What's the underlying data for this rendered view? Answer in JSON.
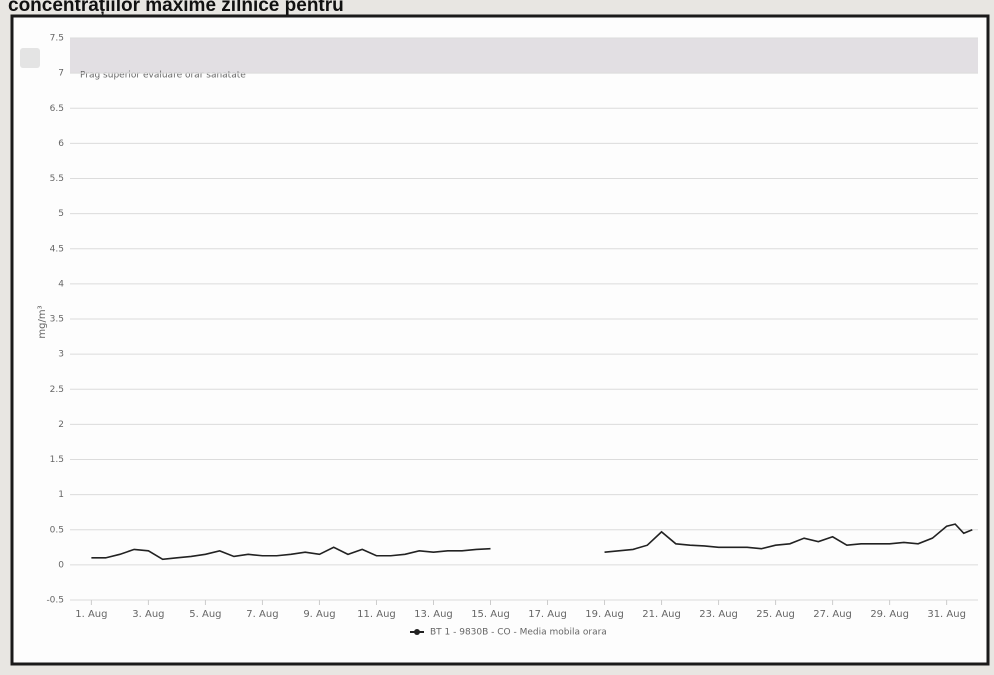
{
  "chart_data": {
    "type": "line",
    "title": "concentrațiilor maxime zilnice pentru",
    "ylabel": "mg/m³",
    "annotation": "Prag superior evaluare orar sanatate",
    "x": [
      1,
      1.5,
      2,
      2.5,
      3,
      3.5,
      4,
      4.5,
      5,
      5.5,
      6,
      6.5,
      7,
      7.5,
      8,
      8.5,
      9,
      9.5,
      10,
      10.5,
      11,
      11.5,
      12,
      12.5,
      13,
      13.5,
      14,
      14.5,
      15,
      17,
      19,
      19.5,
      20,
      20.5,
      21,
      21.5,
      22,
      22.5,
      23,
      23.5,
      24,
      24.5,
      25,
      25.5,
      26,
      26.5,
      27,
      27.5,
      28,
      28.5,
      29,
      29.5,
      30,
      30.5,
      31,
      31.3,
      31.6,
      31.9
    ],
    "series": [
      {
        "name": "BT 1 - 9830B - CO - Media mobila orara",
        "color": "#222222",
        "values": [
          0.1,
          0.1,
          0.15,
          0.22,
          0.2,
          0.08,
          0.1,
          0.12,
          0.15,
          0.2,
          0.12,
          0.15,
          0.13,
          0.13,
          0.15,
          0.18,
          0.15,
          0.25,
          0.15,
          0.22,
          0.13,
          0.13,
          0.15,
          0.2,
          0.18,
          0.2,
          0.2,
          0.22,
          0.23,
          null,
          0.18,
          0.2,
          0.22,
          0.28,
          0.47,
          0.3,
          0.28,
          0.27,
          0.25,
          0.25,
          0.25,
          0.23,
          0.28,
          0.3,
          0.38,
          0.33,
          0.4,
          0.28,
          0.3,
          0.3,
          0.3,
          0.32,
          0.3,
          0.38,
          0.55,
          0.58,
          0.45,
          0.5
        ]
      }
    ],
    "xlim": [
      0.25,
      32.1
    ],
    "xticks": [
      {
        "value": 1,
        "label": "1. Aug"
      },
      {
        "value": 3,
        "label": "3. Aug"
      },
      {
        "value": 5,
        "label": "5. Aug"
      },
      {
        "value": 7,
        "label": "7. Aug"
      },
      {
        "value": 9,
        "label": "9. Aug"
      },
      {
        "value": 11,
        "label": "11. Aug"
      },
      {
        "value": 13,
        "label": "13. Aug"
      },
      {
        "value": 15,
        "label": "15. Aug"
      },
      {
        "value": 17,
        "label": "17. Aug"
      },
      {
        "value": 19,
        "label": "19. Aug"
      },
      {
        "value": 21,
        "label": "21. Aug"
      },
      {
        "value": 23,
        "label": "23. Aug"
      },
      {
        "value": 25,
        "label": "25. Aug"
      },
      {
        "value": 27,
        "label": "27. Aug"
      },
      {
        "value": 29,
        "label": "29. Aug"
      },
      {
        "value": 31,
        "label": "31. Aug"
      }
    ],
    "ylim": [
      -0.5,
      7.5
    ],
    "yticks": [
      -0.5,
      0,
      0.5,
      1,
      1.5,
      2,
      2.5,
      3,
      3.5,
      4,
      4.5,
      5,
      5.5,
      6,
      6.5,
      7,
      7.5
    ],
    "band": [
      7,
      7.5
    ],
    "grid": true
  }
}
